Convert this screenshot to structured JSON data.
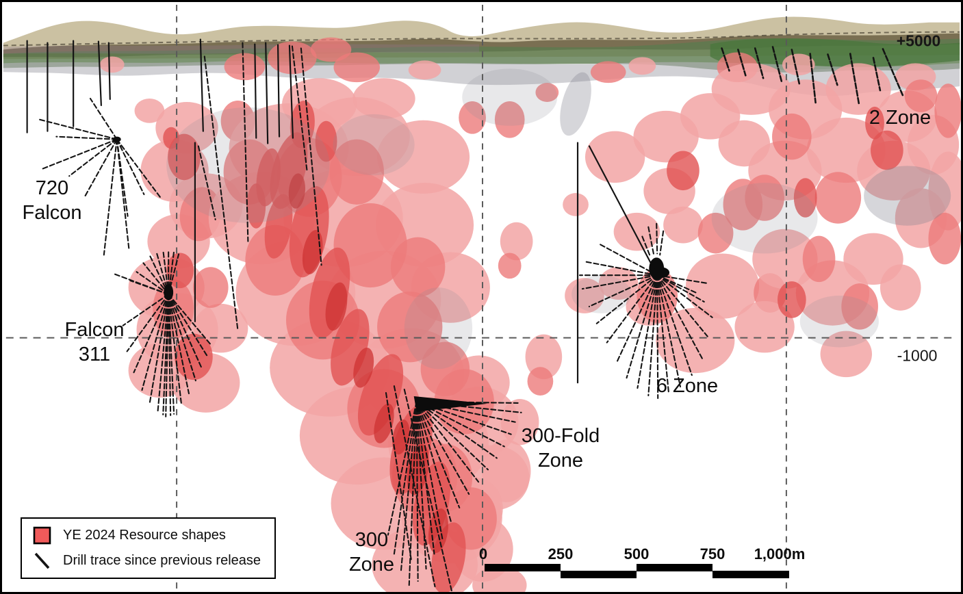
{
  "figure": {
    "elevation": {
      "upper": "+5000",
      "lower": "-1000"
    },
    "zones": {
      "falcon720": {
        "line1": "720",
        "line2": "Falcon"
      },
      "falcon311": {
        "line1": "Falcon",
        "line2": "311"
      },
      "zone300": {
        "line1": "300",
        "line2": "Zone"
      },
      "fold300": {
        "line1": "300-Fold",
        "line2": "Zone"
      },
      "zone6": {
        "label": "6 Zone"
      },
      "zone2": {
        "label": "2 Zone"
      }
    },
    "legend": {
      "items": [
        {
          "swatch": "resource-shape-swatch",
          "label": "YE 2024 Resource shapes"
        },
        {
          "swatch": "drill-trace-swatch",
          "label": "Drill trace since previous release"
        }
      ]
    },
    "scale_bar": {
      "labels": [
        "0",
        "250",
        "500",
        "750",
        "1,000m"
      ]
    },
    "colors": {
      "resource": "#F05A5A",
      "drill": "#141414"
    }
  }
}
